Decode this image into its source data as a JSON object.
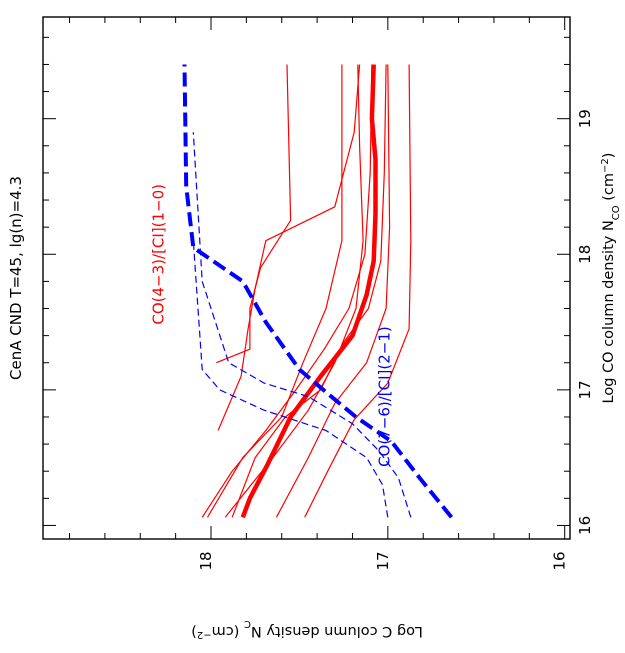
{
  "chart_data": {
    "type": "line",
    "title": "CenA CND T=45, lg(n)=4.3",
    "xlabel": "Log CO column density N_CO (cm^-2)",
    "ylabel": "Log C column density N_C (cm^-2)",
    "xlabel_parts": {
      "main": "Log CO column density N",
      "sub": "CO",
      "unit_open": " (cm",
      "sup": "−2",
      "unit_close": ")"
    },
    "ylabel_parts": {
      "main": "Log C column density N",
      "sub": "C",
      "unit_open": " (cm",
      "sup": "−2",
      "unit_close": ")"
    },
    "xlim": [
      15.9,
      19.75
    ],
    "ylim": [
      15.97,
      18.95
    ],
    "x_ticks": [
      {
        "value": 16,
        "label": "16"
      },
      {
        "value": 17,
        "label": "17"
      },
      {
        "value": 18,
        "label": "18"
      },
      {
        "value": 19,
        "label": "19"
      }
    ],
    "y_ticks": [
      {
        "value": 16,
        "label": "16"
      },
      {
        "value": 17,
        "label": "17"
      },
      {
        "value": 18,
        "label": "18"
      }
    ],
    "annotations": [
      {
        "text": "CO(4−3)/[CI](1−0)",
        "color": "#ff0000",
        "x": 18.0,
        "y": 18.27
      },
      {
        "text": "CO(7−6)/[CI](2−1)",
        "color": "#0000ff",
        "x": 16.95,
        "y": 16.99
      }
    ],
    "colors": {
      "red": "#ff0000",
      "blue": "#0000ff",
      "axis": "#000000"
    },
    "series": [
      {
        "color": "#ff0000",
        "style": "solid",
        "width": 1.2,
        "points": [
          [
            16.06,
            17.47
          ],
          [
            16.4,
            17.34
          ],
          [
            16.78,
            17.19
          ],
          [
            17.05,
            17.0
          ],
          [
            17.45,
            16.88
          ],
          [
            18.1,
            16.87
          ],
          [
            19.4,
            16.88
          ]
        ]
      },
      {
        "color": "#ff0000",
        "style": "solid",
        "width": 1.2,
        "points": [
          [
            16.06,
            17.63
          ],
          [
            16.5,
            17.45
          ],
          [
            16.9,
            17.3
          ],
          [
            17.2,
            17.12
          ],
          [
            17.6,
            17.01
          ],
          [
            18.2,
            16.99
          ],
          [
            19.4,
            17.0
          ]
        ]
      },
      {
        "color": "#ff0000",
        "style": "bold",
        "width": 4.5,
        "points": [
          [
            16.06,
            17.82
          ],
          [
            16.2,
            17.78
          ],
          [
            16.45,
            17.68
          ],
          [
            16.8,
            17.55
          ],
          [
            17.1,
            17.38
          ],
          [
            17.4,
            17.2
          ],
          [
            17.7,
            17.12
          ],
          [
            17.95,
            17.08
          ],
          [
            18.3,
            17.07
          ],
          [
            18.7,
            17.07
          ],
          [
            19.0,
            17.09
          ],
          [
            19.4,
            17.08
          ]
        ]
      },
      {
        "color": "#ff0000",
        "style": "solid",
        "width": 1.2,
        "points": [
          [
            16.06,
            17.92
          ],
          [
            16.5,
            17.65
          ],
          [
            16.85,
            17.45
          ],
          [
            17.2,
            17.3
          ],
          [
            17.6,
            17.18
          ],
          [
            18.1,
            17.14
          ],
          [
            18.8,
            17.16
          ],
          [
            19.4,
            17.17
          ]
        ]
      },
      {
        "color": "#ff0000",
        "style": "solid",
        "width": 1.2,
        "points": [
          [
            16.06,
            18.02
          ],
          [
            16.5,
            17.82
          ],
          [
            16.8,
            17.6
          ],
          [
            17.2,
            17.48
          ],
          [
            17.6,
            17.35
          ],
          [
            18.1,
            17.26
          ],
          [
            18.7,
            17.26
          ],
          [
            19.4,
            17.26
          ]
        ]
      },
      {
        "color": "#ff0000",
        "style": "solid",
        "width": 1.2,
        "points": [
          [
            16.06,
            17.88
          ],
          [
            16.5,
            17.75
          ],
          [
            16.8,
            17.58
          ],
          [
            17.0,
            17.38
          ],
          [
            17.35,
            17.25
          ],
          [
            17.6,
            17.11
          ],
          [
            17.95,
            17.04
          ],
          [
            18.6,
            17.02
          ],
          [
            19.4,
            17.01
          ]
        ]
      },
      {
        "color": "#ff0000",
        "style": "solid",
        "width": 1.2,
        "points": [
          [
            16.06,
            18.05
          ],
          [
            16.4,
            17.88
          ],
          [
            16.7,
            17.69
          ],
          [
            17.0,
            17.52
          ],
          [
            17.3,
            17.36
          ],
          [
            17.6,
            17.22
          ],
          [
            18.0,
            17.13
          ],
          [
            18.6,
            17.1
          ],
          [
            19.4,
            17.09
          ]
        ]
      },
      {
        "color": "#ff0000",
        "style": "solid",
        "width": 1.2,
        "points": [
          [
            16.7,
            17.96
          ],
          [
            17.1,
            17.83
          ],
          [
            17.45,
            17.79
          ],
          [
            17.75,
            17.75
          ],
          [
            18.1,
            17.69
          ],
          [
            18.35,
            17.3
          ],
          [
            18.6,
            17.25
          ],
          [
            18.9,
            17.19
          ],
          [
            19.4,
            17.16
          ]
        ]
      },
      {
        "color": "#ff0000",
        "style": "solid",
        "width": 1.2,
        "points": [
          [
            17.2,
            17.97
          ],
          [
            17.3,
            17.78
          ],
          [
            17.6,
            17.78
          ],
          [
            17.9,
            17.72
          ],
          [
            18.25,
            17.55
          ],
          [
            19.4,
            17.57
          ]
        ]
      },
      {
        "color": "#0000ff",
        "style": "bold-dash",
        "width": 4.0,
        "points": [
          [
            16.06,
            16.64
          ],
          [
            16.35,
            16.82
          ],
          [
            16.62,
            16.98
          ],
          [
            16.8,
            17.18
          ],
          [
            16.95,
            17.32
          ],
          [
            17.15,
            17.5
          ],
          [
            17.5,
            17.69
          ],
          [
            17.8,
            17.82
          ],
          [
            18.05,
            18.1
          ],
          [
            18.5,
            18.14
          ],
          [
            19.4,
            18.15
          ]
        ]
      },
      {
        "color": "#0000ff",
        "style": "dash",
        "width": 1.2,
        "points": [
          [
            16.06,
            16.87
          ],
          [
            16.35,
            16.94
          ],
          [
            16.55,
            17.05
          ],
          [
            16.75,
            17.2
          ],
          [
            16.95,
            17.45
          ],
          [
            17.05,
            17.7
          ],
          [
            17.2,
            17.9
          ],
          [
            17.8,
            18.05
          ],
          [
            18.9,
            18.1
          ]
        ]
      },
      {
        "color": "#0000ff",
        "style": "dash",
        "width": 1.2,
        "points": [
          [
            16.06,
            17.0
          ],
          [
            16.3,
            17.03
          ],
          [
            16.5,
            17.12
          ],
          [
            16.7,
            17.35
          ],
          [
            16.85,
            17.7
          ],
          [
            17.0,
            17.95
          ],
          [
            17.15,
            18.05
          ],
          [
            18.1,
            18.1
          ]
        ]
      }
    ]
  }
}
